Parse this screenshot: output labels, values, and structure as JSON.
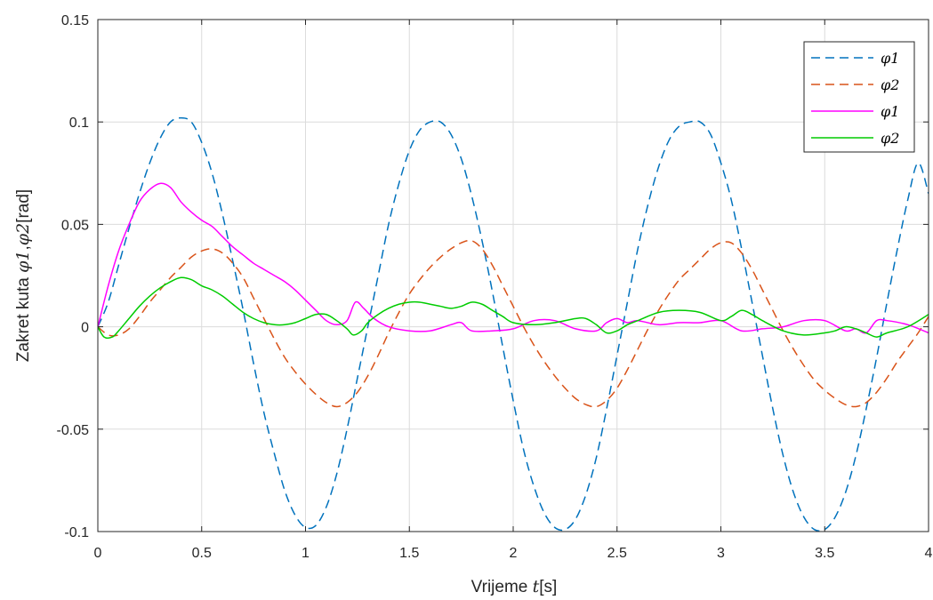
{
  "chart_data": {
    "type": "line",
    "title": "",
    "xlabel": "Vrijeme t[s]",
    "xlabel_parts": {
      "prefix": "Vrijeme ",
      "var": "t",
      "suffix": "[s]"
    },
    "ylabel": "Zakret kuta φ1,φ2[rad]",
    "ylabel_parts": {
      "prefix": "Zakret kuta ",
      "var1": "φ1",
      "sep": ",",
      "var2": "φ2",
      "suffix": "[rad]"
    },
    "xlim": [
      0,
      4
    ],
    "ylim": [
      -0.1,
      0.15
    ],
    "xticks": [
      0,
      0.5,
      1,
      1.5,
      2,
      2.5,
      3,
      3.5,
      4
    ],
    "xtick_labels": [
      "0",
      "0.5",
      "1",
      "1.5",
      "2",
      "2.5",
      "3",
      "3.5",
      "4"
    ],
    "yticks": [
      -0.1,
      -0.05,
      0,
      0.05,
      0.1,
      0.15
    ],
    "ytick_labels": [
      "-0.1",
      "-0.05",
      "0",
      "0.05",
      "0.1",
      "0.15"
    ],
    "grid": true,
    "legend_position": "top-right",
    "series": [
      {
        "name": "φ1",
        "style": "dashed",
        "color": "#0072BD",
        "points": [
          [
            0,
            0
          ],
          [
            0.05,
            0.012
          ],
          [
            0.1,
            0.03
          ],
          [
            0.15,
            0.048
          ],
          [
            0.2,
            0.065
          ],
          [
            0.25,
            0.08
          ],
          [
            0.3,
            0.092
          ],
          [
            0.35,
            0.1
          ],
          [
            0.4,
            0.102
          ],
          [
            0.45,
            0.1
          ],
          [
            0.5,
            0.09
          ],
          [
            0.55,
            0.075
          ],
          [
            0.6,
            0.055
          ],
          [
            0.65,
            0.032
          ],
          [
            0.7,
            0.008
          ],
          [
            0.75,
            -0.018
          ],
          [
            0.8,
            -0.042
          ],
          [
            0.85,
            -0.062
          ],
          [
            0.9,
            -0.08
          ],
          [
            0.95,
            -0.092
          ],
          [
            1.0,
            -0.098
          ],
          [
            1.05,
            -0.097
          ],
          [
            1.1,
            -0.088
          ],
          [
            1.15,
            -0.072
          ],
          [
            1.2,
            -0.05
          ],
          [
            1.25,
            -0.025
          ],
          [
            1.3,
            0.0
          ],
          [
            1.35,
            0.025
          ],
          [
            1.4,
            0.05
          ],
          [
            1.45,
            0.07
          ],
          [
            1.5,
            0.086
          ],
          [
            1.55,
            0.096
          ],
          [
            1.6,
            0.1
          ],
          [
            1.65,
            0.1
          ],
          [
            1.7,
            0.094
          ],
          [
            1.75,
            0.082
          ],
          [
            1.8,
            0.064
          ],
          [
            1.85,
            0.042
          ],
          [
            1.9,
            0.017
          ],
          [
            1.95,
            -0.01
          ],
          [
            2.0,
            -0.036
          ],
          [
            2.05,
            -0.06
          ],
          [
            2.1,
            -0.078
          ],
          [
            2.15,
            -0.091
          ],
          [
            2.2,
            -0.098
          ],
          [
            2.25,
            -0.099
          ],
          [
            2.3,
            -0.094
          ],
          [
            2.35,
            -0.082
          ],
          [
            2.4,
            -0.064
          ],
          [
            2.45,
            -0.04
          ],
          [
            2.5,
            -0.014
          ],
          [
            2.55,
            0.012
          ],
          [
            2.6,
            0.038
          ],
          [
            2.65,
            0.06
          ],
          [
            2.7,
            0.078
          ],
          [
            2.75,
            0.091
          ],
          [
            2.8,
            0.098
          ],
          [
            2.85,
            0.1
          ],
          [
            2.9,
            0.1
          ],
          [
            2.95,
            0.094
          ],
          [
            3.0,
            0.08
          ],
          [
            3.05,
            0.062
          ],
          [
            3.1,
            0.038
          ],
          [
            3.15,
            0.012
          ],
          [
            3.2,
            -0.014
          ],
          [
            3.25,
            -0.04
          ],
          [
            3.3,
            -0.063
          ],
          [
            3.35,
            -0.081
          ],
          [
            3.4,
            -0.093
          ],
          [
            3.45,
            -0.099
          ],
          [
            3.5,
            -0.099
          ],
          [
            3.55,
            -0.093
          ],
          [
            3.6,
            -0.081
          ],
          [
            3.65,
            -0.063
          ],
          [
            3.7,
            -0.04
          ],
          [
            3.75,
            -0.015
          ],
          [
            3.8,
            0.012
          ],
          [
            3.85,
            0.038
          ],
          [
            3.9,
            0.062
          ],
          [
            3.95,
            0.08
          ],
          [
            4.0,
            0.065
          ]
        ]
      },
      {
        "name": "φ2",
        "style": "dashed",
        "color": "#D95319",
        "points": [
          [
            0,
            0
          ],
          [
            0.05,
            -0.004
          ],
          [
            0.1,
            -0.004
          ],
          [
            0.15,
            -0.001
          ],
          [
            0.2,
            0.005
          ],
          [
            0.25,
            0.012
          ],
          [
            0.3,
            0.018
          ],
          [
            0.35,
            0.024
          ],
          [
            0.4,
            0.029
          ],
          [
            0.45,
            0.034
          ],
          [
            0.5,
            0.037
          ],
          [
            0.55,
            0.038
          ],
          [
            0.6,
            0.036
          ],
          [
            0.65,
            0.031
          ],
          [
            0.7,
            0.024
          ],
          [
            0.75,
            0.014
          ],
          [
            0.8,
            0.004
          ],
          [
            0.85,
            -0.006
          ],
          [
            0.9,
            -0.015
          ],
          [
            0.95,
            -0.022
          ],
          [
            1.0,
            -0.028
          ],
          [
            1.05,
            -0.033
          ],
          [
            1.1,
            -0.037
          ],
          [
            1.15,
            -0.039
          ],
          [
            1.2,
            -0.037
          ],
          [
            1.25,
            -0.032
          ],
          [
            1.3,
            -0.024
          ],
          [
            1.35,
            -0.014
          ],
          [
            1.4,
            -0.003
          ],
          [
            1.45,
            0.007
          ],
          [
            1.5,
            0.016
          ],
          [
            1.55,
            0.023
          ],
          [
            1.6,
            0.029
          ],
          [
            1.65,
            0.034
          ],
          [
            1.7,
            0.038
          ],
          [
            1.75,
            0.041
          ],
          [
            1.8,
            0.042
          ],
          [
            1.85,
            0.038
          ],
          [
            1.9,
            0.03
          ],
          [
            1.95,
            0.02
          ],
          [
            2.0,
            0.01
          ],
          [
            2.05,
            0.0
          ],
          [
            2.1,
            -0.009
          ],
          [
            2.15,
            -0.017
          ],
          [
            2.2,
            -0.024
          ],
          [
            2.25,
            -0.03
          ],
          [
            2.3,
            -0.035
          ],
          [
            2.35,
            -0.038
          ],
          [
            2.4,
            -0.039
          ],
          [
            2.45,
            -0.036
          ],
          [
            2.5,
            -0.03
          ],
          [
            2.55,
            -0.021
          ],
          [
            2.6,
            -0.011
          ],
          [
            2.65,
            -0.001
          ],
          [
            2.7,
            0.008
          ],
          [
            2.75,
            0.016
          ],
          [
            2.8,
            0.023
          ],
          [
            2.85,
            0.028
          ],
          [
            2.9,
            0.033
          ],
          [
            2.95,
            0.038
          ],
          [
            3.0,
            0.041
          ],
          [
            3.05,
            0.041
          ],
          [
            3.1,
            0.036
          ],
          [
            3.15,
            0.028
          ],
          [
            3.2,
            0.018
          ],
          [
            3.25,
            0.008
          ],
          [
            3.3,
            -0.002
          ],
          [
            3.35,
            -0.011
          ],
          [
            3.4,
            -0.019
          ],
          [
            3.45,
            -0.026
          ],
          [
            3.5,
            -0.031
          ],
          [
            3.55,
            -0.035
          ],
          [
            3.6,
            -0.038
          ],
          [
            3.65,
            -0.039
          ],
          [
            3.7,
            -0.037
          ],
          [
            3.75,
            -0.032
          ],
          [
            3.8,
            -0.025
          ],
          [
            3.85,
            -0.017
          ],
          [
            3.9,
            -0.01
          ],
          [
            3.95,
            -0.003
          ],
          [
            4.0,
            0.005
          ]
        ]
      },
      {
        "name": "φ1",
        "style": "solid",
        "color": "#FF00FF",
        "points": [
          [
            0,
            0
          ],
          [
            0.05,
            0.02
          ],
          [
            0.1,
            0.037
          ],
          [
            0.15,
            0.05
          ],
          [
            0.2,
            0.061
          ],
          [
            0.25,
            0.067
          ],
          [
            0.3,
            0.07
          ],
          [
            0.35,
            0.068
          ],
          [
            0.4,
            0.061
          ],
          [
            0.45,
            0.056
          ],
          [
            0.5,
            0.052
          ],
          [
            0.55,
            0.049
          ],
          [
            0.6,
            0.044
          ],
          [
            0.65,
            0.039
          ],
          [
            0.7,
            0.035
          ],
          [
            0.75,
            0.031
          ],
          [
            0.8,
            0.028
          ],
          [
            0.85,
            0.025
          ],
          [
            0.9,
            0.022
          ],
          [
            0.95,
            0.018
          ],
          [
            1.0,
            0.013
          ],
          [
            1.05,
            0.008
          ],
          [
            1.1,
            0.003
          ],
          [
            1.15,
            0.001
          ],
          [
            1.2,
            0.003
          ],
          [
            1.24,
            0.012
          ],
          [
            1.28,
            0.009
          ],
          [
            1.33,
            0.004
          ],
          [
            1.4,
            0.0
          ],
          [
            1.5,
            -0.002
          ],
          [
            1.6,
            -0.002
          ],
          [
            1.7,
            0.001
          ],
          [
            1.75,
            0.002
          ],
          [
            1.8,
            -0.002
          ],
          [
            1.9,
            -0.002
          ],
          [
            2.0,
            -0.001
          ],
          [
            2.1,
            0.003
          ],
          [
            2.2,
            0.003
          ],
          [
            2.3,
            -0.001
          ],
          [
            2.4,
            -0.002
          ],
          [
            2.45,
            0.002
          ],
          [
            2.5,
            0.004
          ],
          [
            2.55,
            0.002
          ],
          [
            2.6,
            0.003
          ],
          [
            2.7,
            0.001
          ],
          [
            2.8,
            0.002
          ],
          [
            2.9,
            0.002
          ],
          [
            3.0,
            0.003
          ],
          [
            3.1,
            -0.002
          ],
          [
            3.2,
            -0.001
          ],
          [
            3.3,
            0.0
          ],
          [
            3.4,
            0.003
          ],
          [
            3.5,
            0.003
          ],
          [
            3.6,
            -0.002
          ],
          [
            3.65,
            -0.001
          ],
          [
            3.7,
            -0.003
          ],
          [
            3.75,
            0.003
          ],
          [
            3.8,
            0.003
          ],
          [
            3.9,
            0.001
          ],
          [
            4.0,
            -0.003
          ]
        ]
      },
      {
        "name": "φ2",
        "style": "solid",
        "color": "#00CC00",
        "points": [
          [
            0,
            0
          ],
          [
            0.03,
            -0.005
          ],
          [
            0.07,
            -0.005
          ],
          [
            0.1,
            -0.002
          ],
          [
            0.15,
            0.004
          ],
          [
            0.2,
            0.01
          ],
          [
            0.25,
            0.015
          ],
          [
            0.3,
            0.019
          ],
          [
            0.35,
            0.022
          ],
          [
            0.4,
            0.024
          ],
          [
            0.45,
            0.023
          ],
          [
            0.5,
            0.02
          ],
          [
            0.55,
            0.018
          ],
          [
            0.6,
            0.015
          ],
          [
            0.65,
            0.011
          ],
          [
            0.7,
            0.007
          ],
          [
            0.75,
            0.004
          ],
          [
            0.8,
            0.002
          ],
          [
            0.85,
            0.001
          ],
          [
            0.9,
            0.001
          ],
          [
            0.95,
            0.002
          ],
          [
            1.0,
            0.004
          ],
          [
            1.05,
            0.006
          ],
          [
            1.1,
            0.006
          ],
          [
            1.15,
            0.003
          ],
          [
            1.2,
            -0.001
          ],
          [
            1.23,
            -0.004
          ],
          [
            1.27,
            -0.002
          ],
          [
            1.3,
            0.002
          ],
          [
            1.35,
            0.006
          ],
          [
            1.4,
            0.009
          ],
          [
            1.45,
            0.011
          ],
          [
            1.5,
            0.012
          ],
          [
            1.55,
            0.012
          ],
          [
            1.6,
            0.011
          ],
          [
            1.65,
            0.01
          ],
          [
            1.7,
            0.009
          ],
          [
            1.75,
            0.01
          ],
          [
            1.8,
            0.012
          ],
          [
            1.85,
            0.011
          ],
          [
            1.9,
            0.008
          ],
          [
            1.95,
            0.005
          ],
          [
            2.0,
            0.002
          ],
          [
            2.1,
            0.001
          ],
          [
            2.2,
            0.002
          ],
          [
            2.3,
            0.004
          ],
          [
            2.35,
            0.004
          ],
          [
            2.4,
            0.001
          ],
          [
            2.45,
            -0.003
          ],
          [
            2.5,
            -0.002
          ],
          [
            2.55,
            0.001
          ],
          [
            2.6,
            0.003
          ],
          [
            2.7,
            0.007
          ],
          [
            2.8,
            0.008
          ],
          [
            2.9,
            0.007
          ],
          [
            3.0,
            0.003
          ],
          [
            3.05,
            0.005
          ],
          [
            3.1,
            0.008
          ],
          [
            3.15,
            0.006
          ],
          [
            3.2,
            0.003
          ],
          [
            3.3,
            -0.002
          ],
          [
            3.4,
            -0.004
          ],
          [
            3.5,
            -0.003
          ],
          [
            3.55,
            -0.002
          ],
          [
            3.6,
            0.0
          ],
          [
            3.65,
            -0.001
          ],
          [
            3.7,
            -0.003
          ],
          [
            3.75,
            -0.005
          ],
          [
            3.8,
            -0.003
          ],
          [
            3.9,
            0.0
          ],
          [
            4.0,
            0.006
          ]
        ]
      }
    ]
  }
}
